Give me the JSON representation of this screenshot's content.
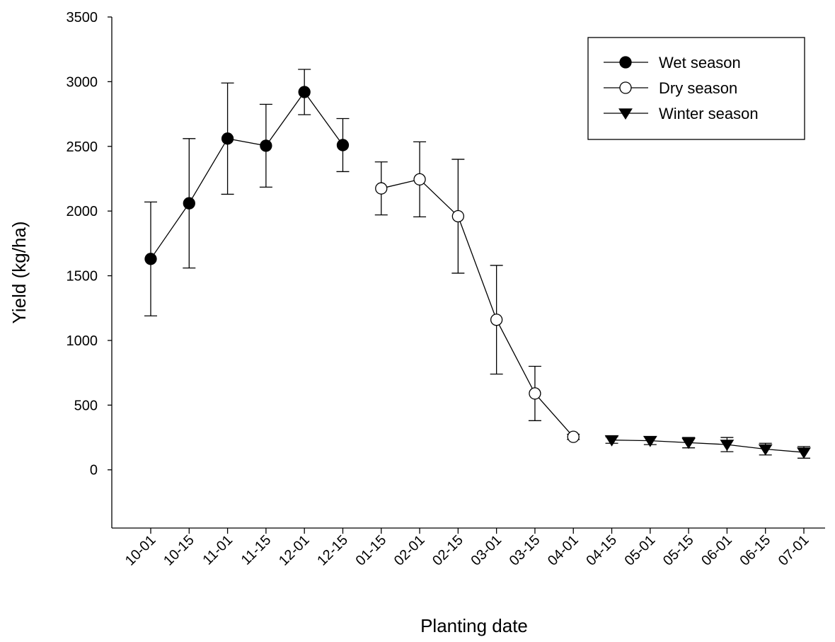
{
  "chart_data": {
    "type": "line",
    "x_label": "Planting date",
    "y_label": "Yield (kg/ha)",
    "categories": [
      "10-01",
      "10-15",
      "11-01",
      "11-15",
      "12-01",
      "12-15",
      "01-15",
      "02-01",
      "02-15",
      "03-01",
      "03-15",
      "04-01",
      "04-15",
      "05-01",
      "05-15",
      "06-01",
      "06-15",
      "07-01"
    ],
    "series": [
      {
        "name": "Wet season",
        "color": "#000000",
        "marker": "filled-circle",
        "values": [
          1630,
          2060,
          2560,
          2505,
          2920,
          2510,
          null,
          null,
          null,
          null,
          null,
          null,
          null,
          null,
          null,
          null,
          null,
          null
        ],
        "errors": [
          440,
          500,
          430,
          320,
          175,
          205,
          null,
          null,
          null,
          null,
          null,
          null,
          null,
          null,
          null,
          null,
          null,
          null
        ]
      },
      {
        "name": "Dry season",
        "color": "#000000",
        "marker": "open-circle",
        "values": [
          null,
          null,
          null,
          null,
          null,
          null,
          2175,
          2245,
          1960,
          1160,
          590,
          255,
          null,
          null,
          null,
          null,
          null,
          null
        ],
        "errors": [
          null,
          null,
          null,
          null,
          null,
          null,
          205,
          290,
          440,
          420,
          210,
          20,
          null,
          null,
          null,
          null,
          null,
          null
        ]
      },
      {
        "name": "Winter season",
        "color": "#000000",
        "marker": "filled-triangle-down",
        "values": [
          null,
          null,
          null,
          null,
          null,
          null,
          null,
          null,
          null,
          null,
          null,
          null,
          230,
          225,
          210,
          195,
          160,
          135
        ],
        "errors": [
          null,
          null,
          null,
          null,
          null,
          null,
          null,
          null,
          null,
          null,
          null,
          null,
          25,
          30,
          40,
          55,
          45,
          45
        ]
      }
    ],
    "ylim": [
      -450,
      3500
    ],
    "yticks": [
      0,
      500,
      1000,
      1500,
      2000,
      2500,
      3000,
      3500
    ],
    "grid": false,
    "legend": "upper-right"
  }
}
